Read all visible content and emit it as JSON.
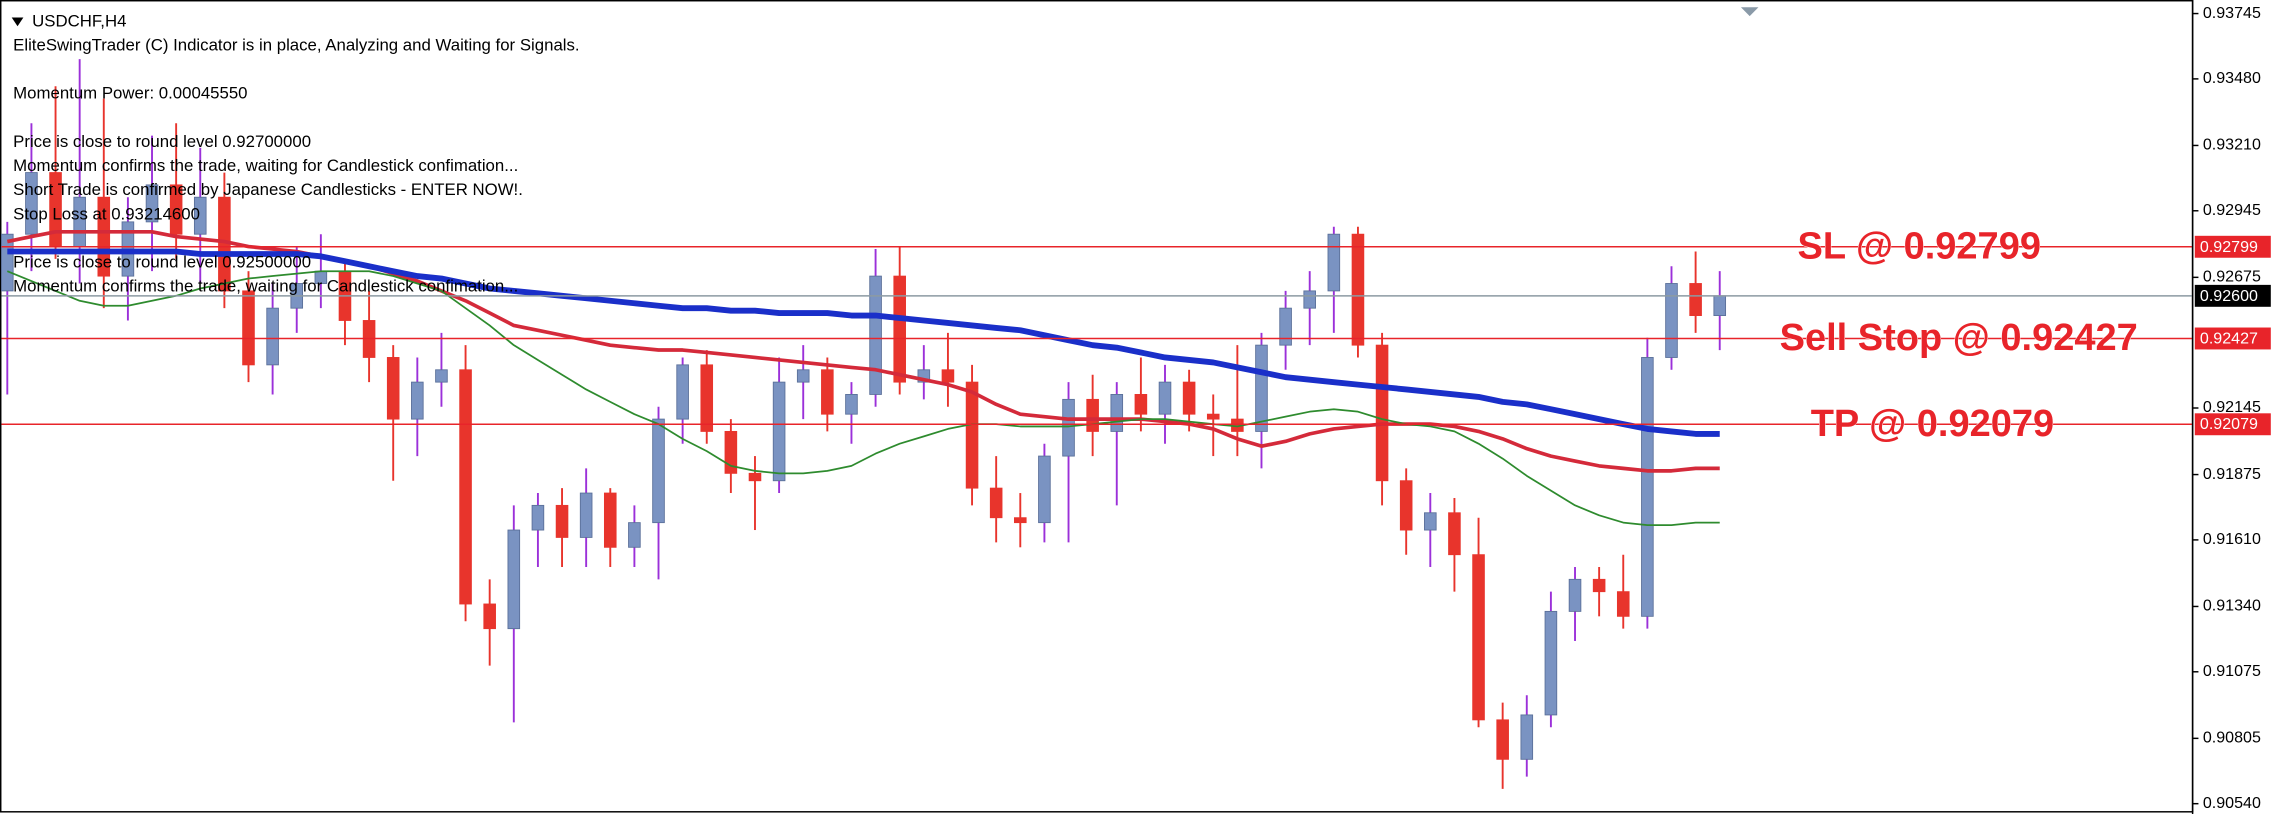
{
  "chart_data": {
    "type": "candlestick",
    "title": "USDCHF,H4",
    "info_lines": [
      "EliteSwingTrader (C) Indicator is in place, Analyzing and Waiting for Signals.",
      "Momentum Power: 0.00045550",
      "Price is close to round level 0.92700000",
      "Momentum confirms the trade, waiting for Candlestick confimation...",
      "Short Trade is confirmed by Japanese Candlesticks - ENTER NOW!.",
      "Stop Loss at 0.93214600",
      "Price is close to round level 0.92500000",
      "Momentum confirms the trade, waiting for Candlestick confimation..."
    ],
    "ylim": [
      0.9051,
      0.938
    ],
    "yticks": [
      0.93745,
      {
        "value": 0.9348,
        "label": "0.93480"
      },
      {
        "value": 0.9321,
        "label": "0.93210"
      },
      0.92945,
      0.92675,
      0.92145,
      0.91875,
      {
        "value": 0.9161,
        "label": "0.91610"
      },
      {
        "value": 0.9134,
        "label": "0.91340"
      },
      0.91075,
      0.90805,
      {
        "value": 0.9054,
        "label": "0.90540"
      }
    ],
    "up_color": "#7a93c2",
    "up_wick_color": "#9b30d9",
    "down_color": "#e8342c",
    "candles": [
      [
        0.9262,
        0.929,
        0.922,
        0.9285
      ],
      [
        0.9285,
        0.933,
        0.927,
        0.931
      ],
      [
        0.931,
        0.9345,
        0.9275,
        0.928
      ],
      [
        0.928,
        0.9356,
        0.9265,
        0.93
      ],
      [
        0.93,
        0.934,
        0.9255,
        0.9268
      ],
      [
        0.9268,
        0.93,
        0.925,
        0.929
      ],
      [
        0.929,
        0.9325,
        0.927,
        0.9305
      ],
      [
        0.9305,
        0.933,
        0.9275,
        0.9285
      ],
      [
        0.9285,
        0.932,
        0.9265,
        0.93
      ],
      [
        0.93,
        0.931,
        0.9255,
        0.9262
      ],
      [
        0.9262,
        0.927,
        0.9225,
        0.9232
      ],
      [
        0.9232,
        0.9265,
        0.922,
        0.9255
      ],
      [
        0.9255,
        0.928,
        0.9245,
        0.9265
      ],
      [
        0.9265,
        0.9285,
        0.9255,
        0.927
      ],
      [
        0.927,
        0.9275,
        0.924,
        0.925
      ],
      [
        0.925,
        0.9262,
        0.9225,
        0.9235
      ],
      [
        0.9235,
        0.924,
        0.9185,
        0.921
      ],
      [
        0.921,
        0.9235,
        0.9195,
        0.9225
      ],
      [
        0.9225,
        0.9245,
        0.9215,
        0.923
      ],
      [
        0.923,
        0.924,
        0.9128,
        0.9135
      ],
      [
        0.9135,
        0.9145,
        0.911,
        0.9125
      ],
      [
        0.9125,
        0.9175,
        0.9087,
        0.9165
      ],
      [
        0.9165,
        0.918,
        0.915,
        0.9175
      ],
      [
        0.9175,
        0.9182,
        0.915,
        0.9162
      ],
      [
        0.9162,
        0.919,
        0.915,
        0.918
      ],
      [
        0.918,
        0.9182,
        0.915,
        0.9158
      ],
      [
        0.9158,
        0.9175,
        0.915,
        0.9168
      ],
      [
        0.9168,
        0.9215,
        0.9145,
        0.921
      ],
      [
        0.921,
        0.9235,
        0.92,
        0.9232
      ],
      [
        0.9232,
        0.9238,
        0.92,
        0.9205
      ],
      [
        0.9205,
        0.921,
        0.918,
        0.9188
      ],
      [
        0.9188,
        0.9195,
        0.9165,
        0.9185
      ],
      [
        0.9185,
        0.9235,
        0.918,
        0.9225
      ],
      [
        0.9225,
        0.924,
        0.921,
        0.923
      ],
      [
        0.923,
        0.9235,
        0.9205,
        0.9212
      ],
      [
        0.9212,
        0.9225,
        0.92,
        0.922
      ],
      [
        0.922,
        0.9279,
        0.9215,
        0.9268
      ],
      [
        0.9268,
        0.928,
        0.922,
        0.9225
      ],
      [
        0.9225,
        0.924,
        0.9218,
        0.923
      ],
      [
        0.923,
        0.9245,
        0.9215,
        0.9225
      ],
      [
        0.9225,
        0.9232,
        0.9175,
        0.9182
      ],
      [
        0.9182,
        0.9195,
        0.916,
        0.917
      ],
      [
        0.917,
        0.918,
        0.9158,
        0.9168
      ],
      [
        0.9168,
        0.92,
        0.916,
        0.9195
      ],
      [
        0.9195,
        0.9225,
        0.916,
        0.9218
      ],
      [
        0.9218,
        0.9228,
        0.9195,
        0.9205
      ],
      [
        0.9205,
        0.9225,
        0.9175,
        0.922
      ],
      [
        0.922,
        0.9235,
        0.9205,
        0.9212
      ],
      [
        0.9212,
        0.9232,
        0.92,
        0.9225
      ],
      [
        0.9225,
        0.923,
        0.9205,
        0.9212
      ],
      [
        0.9212,
        0.922,
        0.9195,
        0.921
      ],
      [
        0.921,
        0.924,
        0.9195,
        0.9205
      ],
      [
        0.9205,
        0.9245,
        0.919,
        0.924
      ],
      [
        0.924,
        0.9262,
        0.923,
        0.9255
      ],
      [
        0.9255,
        0.927,
        0.924,
        0.9262
      ],
      [
        0.9262,
        0.9288,
        0.9245,
        0.9285
      ],
      [
        0.9285,
        0.9288,
        0.9235,
        0.924
      ],
      [
        0.924,
        0.9245,
        0.9175,
        0.9185
      ],
      [
        0.9185,
        0.919,
        0.9155,
        0.9165
      ],
      [
        0.9165,
        0.918,
        0.915,
        0.9172
      ],
      [
        0.9172,
        0.9178,
        0.914,
        0.9155
      ],
      [
        0.9155,
        0.917,
        0.9085,
        0.9088
      ],
      [
        0.9088,
        0.9095,
        0.906,
        0.9072
      ],
      [
        0.9072,
        0.9098,
        0.9065,
        0.909
      ],
      [
        0.909,
        0.914,
        0.9085,
        0.9132
      ],
      [
        0.9132,
        0.915,
        0.912,
        0.9145
      ],
      [
        0.9145,
        0.915,
        0.913,
        0.914
      ],
      [
        0.914,
        0.9155,
        0.9125,
        0.913
      ],
      [
        0.913,
        0.9243,
        0.9125,
        0.9235
      ],
      [
        0.9235,
        0.9272,
        0.923,
        0.9265
      ],
      [
        0.9265,
        0.9278,
        0.9245,
        0.9252
      ],
      [
        0.9252,
        0.927,
        0.9238,
        0.926
      ]
    ],
    "series": [
      {
        "color": "#d42a3a",
        "values": [
          0.9282,
          0.9284,
          0.9286,
          0.9286,
          0.9286,
          0.9286,
          0.9286,
          0.9284,
          0.9283,
          0.9282,
          0.928,
          0.9279,
          0.9278,
          0.9276,
          0.9274,
          0.9272,
          0.9269,
          0.9266,
          0.9262,
          0.9258,
          0.9253,
          0.9248,
          0.9246,
          0.9244,
          0.9242,
          0.924,
          0.9239,
          0.9238,
          0.9238,
          0.9237,
          0.9236,
          0.9235,
          0.9234,
          0.9233,
          0.9232,
          0.9231,
          0.923,
          0.9228,
          0.9226,
          0.9224,
          0.9221,
          0.9216,
          0.9212,
          0.9211,
          0.921,
          0.921,
          0.921,
          0.921,
          0.9209,
          0.9208,
          0.9206,
          0.9202,
          0.9199,
          0.9201,
          0.9204,
          0.9206,
          0.9207,
          0.9208,
          0.9208,
          0.9208,
          0.9207,
          0.9205,
          0.9202,
          0.9198,
          0.9195,
          0.9193,
          0.9191,
          0.919,
          0.9189,
          0.9189,
          0.919,
          0.919
        ]
      },
      {
        "color": "#2e8b2e",
        "values": [
          0.927,
          0.9266,
          0.9262,
          0.9258,
          0.9256,
          0.9256,
          0.9258,
          0.926,
          0.9263,
          0.9265,
          0.9267,
          0.9268,
          0.9269,
          0.927,
          0.927,
          0.927,
          0.9268,
          0.9265,
          0.9262,
          0.9255,
          0.9248,
          0.924,
          0.9234,
          0.9228,
          0.9222,
          0.9217,
          0.9212,
          0.9208,
          0.9202,
          0.9197,
          0.9191,
          0.9189,
          0.9188,
          0.9188,
          0.9189,
          0.9191,
          0.9196,
          0.92,
          0.9203,
          0.9206,
          0.9208,
          0.9208,
          0.9207,
          0.9207,
          0.9207,
          0.9208,
          0.9209,
          0.921,
          0.921,
          0.9209,
          0.9208,
          0.9207,
          0.9209,
          0.9211,
          0.9213,
          0.9214,
          0.9213,
          0.921,
          0.9208,
          0.9207,
          0.9205,
          0.92,
          0.9194,
          0.9187,
          0.9181,
          0.9175,
          0.9171,
          0.9168,
          0.9167,
          0.9167,
          0.9168,
          0.9168
        ]
      },
      {
        "color": "#1a2fc9",
        "values": [
          0.9278,
          0.9278,
          0.9278,
          0.9278,
          0.9278,
          0.9278,
          0.9278,
          0.9278,
          0.9277,
          0.9277,
          0.9277,
          0.9277,
          0.9277,
          0.9276,
          0.9274,
          0.9272,
          0.927,
          0.9268,
          0.9267,
          0.9265,
          0.9263,
          0.9262,
          0.9261,
          0.926,
          0.9259,
          0.9258,
          0.9257,
          0.9256,
          0.9255,
          0.9255,
          0.9254,
          0.9254,
          0.9253,
          0.9253,
          0.9253,
          0.9252,
          0.9252,
          0.9251,
          0.925,
          0.9249,
          0.9248,
          0.9247,
          0.9246,
          0.9244,
          0.9242,
          0.924,
          0.9239,
          0.9237,
          0.9235,
          0.9234,
          0.9233,
          0.9231,
          0.9229,
          0.9227,
          0.9226,
          0.9225,
          0.9224,
          0.9223,
          0.9222,
          0.9221,
          0.922,
          0.9219,
          0.9217,
          0.9216,
          0.9214,
          0.9212,
          0.921,
          0.9208,
          0.9206,
          0.9205,
          0.9204,
          0.9204
        ]
      }
    ],
    "levels": [
      {
        "text": "SL @ 0.92799",
        "value": 0.92799,
        "color": "#e8242a"
      },
      {
        "value": 0.926,
        "value_label": "0.92600",
        "color": "#000000",
        "line_color": "#8c9aa2"
      },
      {
        "text": "Sell Stop @ 0.92427",
        "value": 0.92427,
        "color": "#e8242a"
      },
      {
        "text": "TP @ 0.92079",
        "value": 0.92079,
        "color": "#e8242a"
      }
    ]
  }
}
